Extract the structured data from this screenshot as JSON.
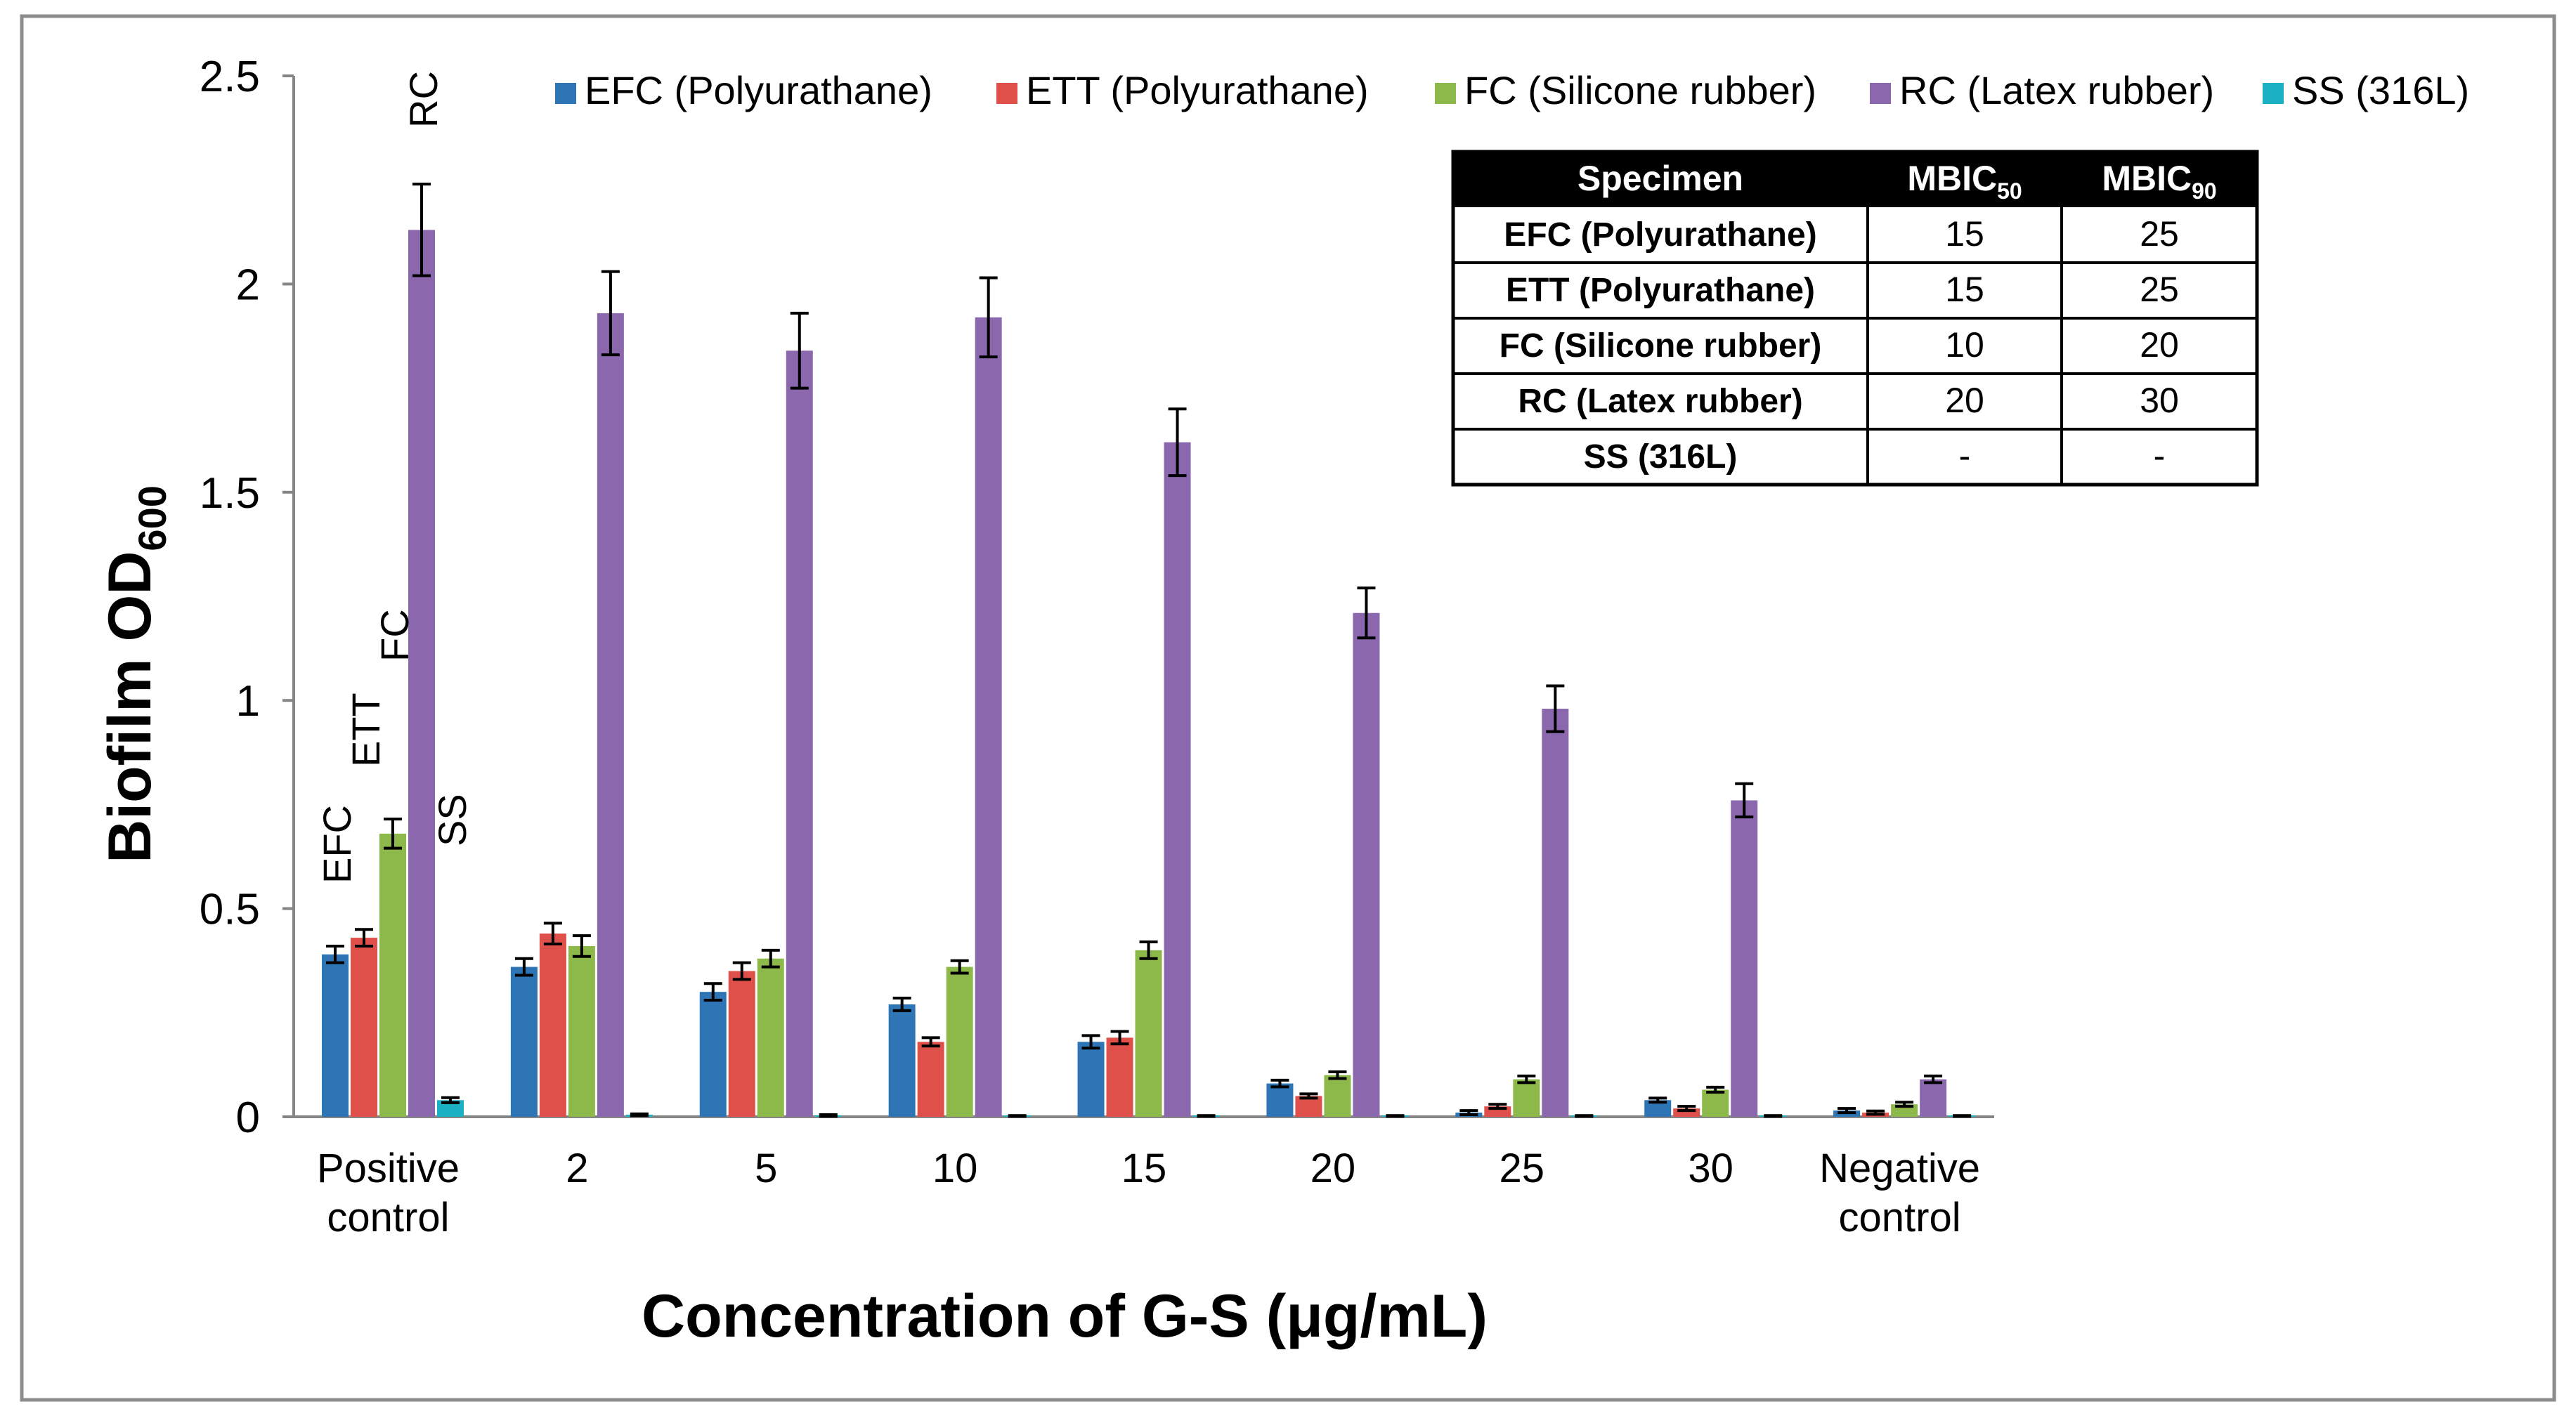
{
  "chart_data": {
    "type": "bar",
    "title": "",
    "xlabel": "Concentration of G-S (μg/mL)",
    "ylabel_main": "Biofilm OD",
    "ylabel_sub": "600",
    "ylim": [
      0,
      2.5
    ],
    "yticks": [
      0,
      0.5,
      1,
      1.5,
      2,
      2.5
    ],
    "ytick_labels": [
      "0",
      "0.5",
      "1",
      "1.5",
      "2",
      "2.5"
    ],
    "legend_position": "top",
    "grid": false,
    "categories": [
      {
        "line1": "Positive",
        "line2": "control"
      },
      {
        "line1": "2",
        "line2": ""
      },
      {
        "line1": "5",
        "line2": ""
      },
      {
        "line1": "10",
        "line2": ""
      },
      {
        "line1": "15",
        "line2": ""
      },
      {
        "line1": "20",
        "line2": ""
      },
      {
        "line1": "25",
        "line2": ""
      },
      {
        "line1": "30",
        "line2": ""
      },
      {
        "line1": "Negative",
        "line2": "control"
      }
    ],
    "series": [
      {
        "name": "EFC (Polyurathane)",
        "short": "EFC",
        "color": "#2E75B6",
        "values": [
          0.39,
          0.36,
          0.3,
          0.27,
          0.18,
          0.08,
          0.01,
          0.04,
          0.015
        ],
        "errors": [
          0.02,
          0.02,
          0.02,
          0.015,
          0.015,
          0.008,
          0.005,
          0.005,
          0.005
        ]
      },
      {
        "name": "ETT (Polyurathane)",
        "short": "ETT",
        "color": "#E0504A",
        "values": [
          0.43,
          0.44,
          0.35,
          0.18,
          0.19,
          0.05,
          0.025,
          0.02,
          0.01
        ],
        "errors": [
          0.02,
          0.025,
          0.02,
          0.01,
          0.015,
          0.005,
          0.005,
          0.005,
          0.004
        ]
      },
      {
        "name": "FC (Silicone rubber)",
        "short": "FC",
        "color": "#8DB84A",
        "values": [
          0.68,
          0.41,
          0.38,
          0.36,
          0.4,
          0.1,
          0.09,
          0.065,
          0.03
        ],
        "errors": [
          0.035,
          0.025,
          0.02,
          0.015,
          0.02,
          0.008,
          0.008,
          0.006,
          0.005
        ]
      },
      {
        "name": "RC (Latex rubber)",
        "short": "RC",
        "color": "#8B67AE",
        "values": [
          2.13,
          1.93,
          1.84,
          1.92,
          1.62,
          1.21,
          0.98,
          0.76,
          0.09
        ],
        "errors": [
          0.11,
          0.1,
          0.09,
          0.095,
          0.08,
          0.06,
          0.055,
          0.04,
          0.008
        ]
      },
      {
        "name": "SS (316L)",
        "short": "SS",
        "color": "#1BB0C4",
        "values": [
          0.04,
          0.005,
          0.003,
          0.002,
          0.002,
          0.002,
          0.002,
          0.002,
          0.002
        ],
        "errors": [
          0.006,
          0.002,
          0.002,
          0.001,
          0.001,
          0.001,
          0.001,
          0.001,
          0.001
        ]
      }
    ],
    "table": {
      "headers": {
        "specimen": "Specimen",
        "mbic50_main": "MBIC",
        "mbic50_sub": "50",
        "mbic90_main": "MBIC",
        "mbic90_sub": "90"
      },
      "rows": [
        [
          "EFC (Polyurathane)",
          "15",
          "25"
        ],
        [
          "ETT (Polyurathane)",
          "15",
          "25"
        ],
        [
          "FC (Silicone rubber)",
          "10",
          "20"
        ],
        [
          "RC (Latex rubber)",
          "20",
          "30"
        ],
        [
          "SS (316L)",
          "-",
          "-"
        ]
      ]
    }
  }
}
